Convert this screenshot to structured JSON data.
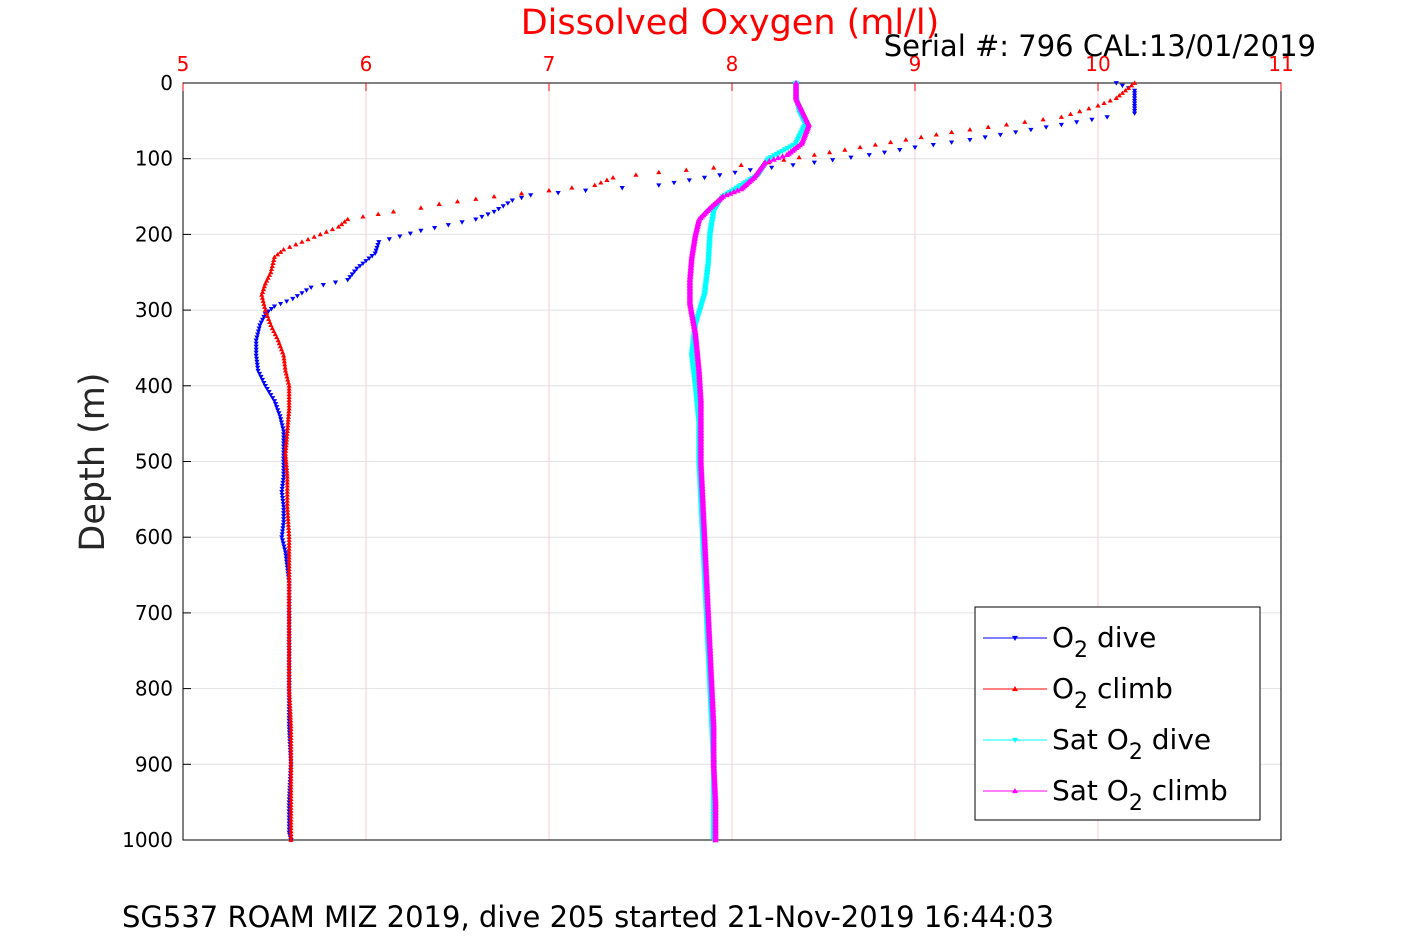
{
  "chart_data": {
    "type": "scatter",
    "title": "Dissolved Oxygen (ml/l)",
    "subtitle": "Serial #: 796  CAL:13/01/2019",
    "ylabel": "Depth (m)",
    "footer": "SG537 ROAM MIZ 2019, dive 205 started 21-Nov-2019 16:44:03",
    "xlim": [
      5,
      11
    ],
    "ylim": [
      0,
      1000
    ],
    "y_reversed": true,
    "x_axis_location": "top",
    "x_ticks": [
      5,
      6,
      7,
      8,
      9,
      10,
      11
    ],
    "y_ticks": [
      0,
      100,
      200,
      300,
      400,
      500,
      600,
      700,
      800,
      900,
      1000
    ],
    "grid": true,
    "legend_position": "bottom-right",
    "colors": {
      "title": "#ff0000",
      "xtick": "#ff0000",
      "grid": "#ffc8d2",
      "o2_dive": "#0000ff",
      "o2_climb": "#ff0000",
      "sat_dive": "#00ffff",
      "sat_climb": "#ff00ff"
    },
    "series": [
      {
        "name": "O2 dive",
        "legend": {
          "pre": "O",
          "sub": "2",
          "post": " dive"
        },
        "color": "#0000ff",
        "marker": "triangle-down",
        "points": [
          [
            10.1,
            0
          ],
          [
            10.2,
            10
          ],
          [
            10.2,
            20
          ],
          [
            10.2,
            30
          ],
          [
            10.2,
            40
          ],
          [
            10.05,
            45
          ],
          [
            9.8,
            55
          ],
          [
            9.55,
            65
          ],
          [
            9.3,
            75
          ],
          [
            9.0,
            85
          ],
          [
            8.75,
            95
          ],
          [
            8.45,
            105
          ],
          [
            8.1,
            115
          ],
          [
            7.85,
            125
          ],
          [
            7.6,
            135
          ],
          [
            7.2,
            142
          ],
          [
            6.9,
            148
          ],
          [
            6.8,
            155
          ],
          [
            6.7,
            170
          ],
          [
            6.6,
            180
          ],
          [
            6.3,
            195
          ],
          [
            6.07,
            210
          ],
          [
            6.05,
            225
          ],
          [
            6.0,
            235
          ],
          [
            5.95,
            245
          ],
          [
            5.9,
            260
          ],
          [
            5.7,
            270
          ],
          [
            5.6,
            285
          ],
          [
            5.5,
            295
          ],
          [
            5.45,
            305
          ],
          [
            5.42,
            320
          ],
          [
            5.4,
            340
          ],
          [
            5.4,
            360
          ],
          [
            5.41,
            380
          ],
          [
            5.45,
            400
          ],
          [
            5.5,
            420
          ],
          [
            5.53,
            440
          ],
          [
            5.55,
            460
          ],
          [
            5.55,
            480
          ],
          [
            5.55,
            500
          ],
          [
            5.55,
            520
          ],
          [
            5.54,
            540
          ],
          [
            5.55,
            560
          ],
          [
            5.55,
            580
          ],
          [
            5.54,
            600
          ],
          [
            5.56,
            620
          ],
          [
            5.57,
            640
          ],
          [
            5.58,
            660
          ],
          [
            5.58,
            700
          ],
          [
            5.58,
            750
          ],
          [
            5.58,
            800
          ],
          [
            5.58,
            850
          ],
          [
            5.59,
            900
          ],
          [
            5.58,
            950
          ],
          [
            5.58,
            990
          ],
          [
            5.59,
            1000
          ]
        ]
      },
      {
        "name": "O2 climb",
        "legend": {
          "pre": "O",
          "sub": "2",
          "post": " climb"
        },
        "color": "#ff0000",
        "marker": "triangle-up",
        "points": [
          [
            10.2,
            0
          ],
          [
            10.15,
            10
          ],
          [
            10.1,
            20
          ],
          [
            10.0,
            30
          ],
          [
            9.8,
            45
          ],
          [
            9.5,
            55
          ],
          [
            9.2,
            65
          ],
          [
            8.95,
            75
          ],
          [
            8.7,
            85
          ],
          [
            8.45,
            95
          ],
          [
            8.2,
            105
          ],
          [
            7.9,
            112
          ],
          [
            7.6,
            118
          ],
          [
            7.35,
            125
          ],
          [
            7.25,
            135
          ],
          [
            7.0,
            142
          ],
          [
            6.7,
            150
          ],
          [
            6.4,
            160
          ],
          [
            6.3,
            165
          ],
          [
            6.15,
            170
          ],
          [
            5.9,
            180
          ],
          [
            5.85,
            190
          ],
          [
            5.75,
            200
          ],
          [
            5.65,
            210
          ],
          [
            5.55,
            220
          ],
          [
            5.5,
            230
          ],
          [
            5.48,
            250
          ],
          [
            5.45,
            265
          ],
          [
            5.43,
            280
          ],
          [
            5.45,
            300
          ],
          [
            5.48,
            320
          ],
          [
            5.52,
            340
          ],
          [
            5.55,
            360
          ],
          [
            5.56,
            380
          ],
          [
            5.58,
            400
          ],
          [
            5.58,
            430
          ],
          [
            5.57,
            460
          ],
          [
            5.56,
            490
          ],
          [
            5.57,
            520
          ],
          [
            5.57,
            560
          ],
          [
            5.58,
            600
          ],
          [
            5.58,
            650
          ],
          [
            5.58,
            700
          ],
          [
            5.58,
            750
          ],
          [
            5.58,
            800
          ],
          [
            5.59,
            850
          ],
          [
            5.59,
            900
          ],
          [
            5.59,
            950
          ],
          [
            5.59,
            1000
          ]
        ]
      },
      {
        "name": "Sat O2 dive",
        "legend": {
          "pre": "Sat O",
          "sub": "2",
          "post": " dive"
        },
        "color": "#00ffff",
        "marker": "triangle-down",
        "points": [
          [
            8.35,
            0
          ],
          [
            8.35,
            20
          ],
          [
            8.37,
            40
          ],
          [
            8.4,
            55
          ],
          [
            8.35,
            80
          ],
          [
            8.2,
            100
          ],
          [
            8.15,
            120
          ],
          [
            8.05,
            135
          ],
          [
            7.95,
            150
          ],
          [
            7.9,
            170
          ],
          [
            7.88,
            200
          ],
          [
            7.87,
            240
          ],
          [
            7.85,
            280
          ],
          [
            7.8,
            320
          ],
          [
            7.78,
            360
          ],
          [
            7.8,
            400
          ],
          [
            7.82,
            450
          ],
          [
            7.82,
            500
          ],
          [
            7.83,
            550
          ],
          [
            7.84,
            600
          ],
          [
            7.85,
            650
          ],
          [
            7.86,
            700
          ],
          [
            7.87,
            750
          ],
          [
            7.88,
            800
          ],
          [
            7.89,
            850
          ],
          [
            7.9,
            900
          ],
          [
            7.9,
            950
          ],
          [
            7.9,
            1000
          ]
        ]
      },
      {
        "name": "Sat O2 climb",
        "legend": {
          "pre": "Sat O",
          "sub": "2",
          "post": " climb"
        },
        "color": "#ff00ff",
        "marker": "triangle-up",
        "points": [
          [
            8.35,
            0
          ],
          [
            8.35,
            20
          ],
          [
            8.38,
            35
          ],
          [
            8.42,
            55
          ],
          [
            8.38,
            80
          ],
          [
            8.3,
            95
          ],
          [
            8.18,
            105
          ],
          [
            8.12,
            125
          ],
          [
            8.05,
            140
          ],
          [
            7.95,
            150
          ],
          [
            7.88,
            165
          ],
          [
            7.82,
            180
          ],
          [
            7.8,
            200
          ],
          [
            7.78,
            230
          ],
          [
            7.77,
            260
          ],
          [
            7.77,
            290
          ],
          [
            7.8,
            330
          ],
          [
            7.82,
            380
          ],
          [
            7.83,
            420
          ],
          [
            7.83,
            460
          ],
          [
            7.83,
            500
          ],
          [
            7.84,
            550
          ],
          [
            7.85,
            600
          ],
          [
            7.86,
            650
          ],
          [
            7.87,
            700
          ],
          [
            7.88,
            750
          ],
          [
            7.89,
            800
          ],
          [
            7.9,
            850
          ],
          [
            7.9,
            900
          ],
          [
            7.91,
            950
          ],
          [
            7.91,
            1000
          ]
        ]
      }
    ]
  }
}
